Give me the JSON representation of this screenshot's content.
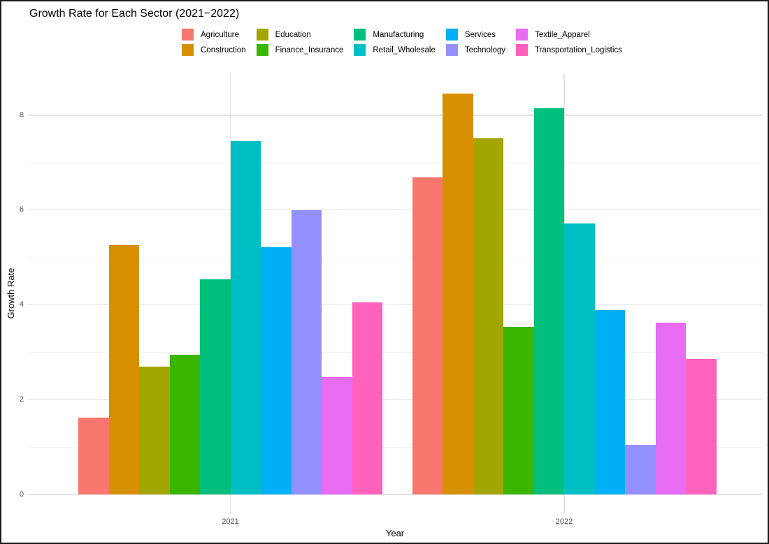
{
  "chart_data": {
    "type": "bar",
    "title": "Growth Rate for Each Sector (2021−2022)",
    "xlabel": "Year",
    "ylabel": "Growth Rate",
    "categories": [
      "2021",
      "2022"
    ],
    "series": [
      {
        "name": "Agriculture",
        "color": "#F8766D",
        "values": [
          1.62,
          6.69
        ]
      },
      {
        "name": "Construction",
        "color": "#D89000",
        "values": [
          5.26,
          8.45
        ]
      },
      {
        "name": "Education",
        "color": "#A3A500",
        "values": [
          2.7,
          7.51
        ]
      },
      {
        "name": "Finance_Insurance",
        "color": "#39B600",
        "values": [
          2.95,
          3.54
        ]
      },
      {
        "name": "Manufacturing",
        "color": "#00BF7D",
        "values": [
          4.54,
          8.14
        ]
      },
      {
        "name": "Retail_Wholesale",
        "color": "#00BFC4",
        "values": [
          7.45,
          5.71
        ]
      },
      {
        "name": "Services",
        "color": "#00B0F6",
        "values": [
          5.21,
          3.89
        ]
      },
      {
        "name": "Technology",
        "color": "#9590FF",
        "values": [
          6.0,
          1.05
        ]
      },
      {
        "name": "Textile_Apparel",
        "color": "#E76BF3",
        "values": [
          2.47,
          3.62
        ]
      },
      {
        "name": "Transportation_Logistics",
        "color": "#FF62BC",
        "values": [
          4.05,
          2.86
        ]
      }
    ],
    "y_ticks": [
      0,
      2,
      4,
      6,
      8
    ],
    "y_minor_ticks": [
      1,
      3,
      5,
      7
    ],
    "ylim": [
      0,
      8.87
    ],
    "grid": true,
    "legend_position": "top",
    "colors": {
      "background": "#ffffff",
      "grid_major": "#e3e3e3",
      "grid_minor": "#f2f2f2",
      "tick_text": "#4d4d4d",
      "title_text": "#000000"
    }
  }
}
